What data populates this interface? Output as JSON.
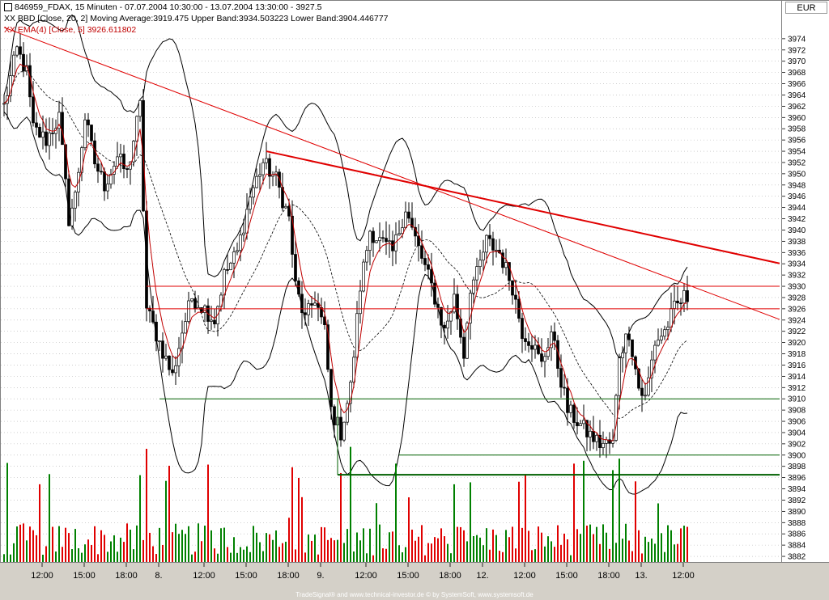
{
  "header": {
    "title_line": "846959_FDAX, 15 Minuten - 07.07.2004 10:30:00 - 13.07.2004 13:30:00 - 3927.5",
    "bollinger_line": "XX BBD [Close, 20, 2] Moving Average:3919.475 Upper Band:3934.503223 Lower Band:3904.446777",
    "ema_line": "XX EMA(4) [Close, 5] 3926.611802"
  },
  "currency": "EUR",
  "footer": "TradeSignal® and www.technical-investor.de © by SystemSoft, www.systemsoft.de",
  "colors": {
    "up": "#008000",
    "down": "#e00000",
    "ema": "#c00000",
    "trendline": "#e00000",
    "support": "#006000",
    "band": "#000000"
  },
  "chart_data": {
    "type": "candlestick",
    "ylim": [
      3881,
      3977
    ],
    "y_ticks": [
      "3974",
      "3972",
      "3970",
      "3968",
      "3966",
      "3964",
      "3962",
      "3960",
      "3958",
      "3956",
      "3954",
      "3952",
      "3950",
      "3948",
      "3946",
      "3944",
      "3942",
      "3940",
      "3938",
      "3936",
      "3934",
      "3932",
      "3930",
      "3928",
      "3926",
      "3924",
      "3922",
      "3920",
      "3918",
      "3916",
      "3914",
      "3912",
      "3910",
      "3908",
      "3906",
      "3904",
      "3902",
      "3900",
      "3898",
      "3896",
      "3894",
      "3892",
      "3890",
      "3888",
      "3886",
      "3884",
      "3882"
    ],
    "x_ticks": [
      {
        "bar": 12,
        "label": "12:00"
      },
      {
        "bar": 25,
        "label": "15:00"
      },
      {
        "bar": 38,
        "label": "18:00"
      },
      {
        "bar": 48,
        "label": "8."
      },
      {
        "bar": 62,
        "label": "12:00"
      },
      {
        "bar": 75,
        "label": "15:00"
      },
      {
        "bar": 88,
        "label": "18:00"
      },
      {
        "bar": 98,
        "label": "9."
      },
      {
        "bar": 112,
        "label": "12:00"
      },
      {
        "bar": 125,
        "label": "15:00"
      },
      {
        "bar": 138,
        "label": "18:00"
      },
      {
        "bar": 148,
        "label": "12."
      },
      {
        "bar": 161,
        "label": "12:00"
      },
      {
        "bar": 174,
        "label": "15:00"
      },
      {
        "bar": 187,
        "label": "18:00"
      },
      {
        "bar": 197,
        "label": "13."
      },
      {
        "bar": 210,
        "label": "12:00"
      }
    ],
    "num_bars": 212,
    "waypoints": [
      [
        0,
        3962
      ],
      [
        4,
        3972
      ],
      [
        7,
        3968
      ],
      [
        9,
        3958
      ],
      [
        13,
        3956
      ],
      [
        17,
        3960
      ],
      [
        20,
        3942
      ],
      [
        22,
        3946
      ],
      [
        25,
        3960
      ],
      [
        28,
        3952
      ],
      [
        31,
        3948
      ],
      [
        35,
        3953
      ],
      [
        38,
        3950
      ],
      [
        40,
        3956
      ],
      [
        42,
        3962
      ],
      [
        44,
        3926
      ],
      [
        48,
        3920
      ],
      [
        52,
        3914
      ],
      [
        55,
        3922
      ],
      [
        58,
        3928
      ],
      [
        62,
        3926
      ],
      [
        65,
        3924
      ],
      [
        68,
        3932
      ],
      [
        72,
        3936
      ],
      [
        76,
        3946
      ],
      [
        80,
        3952
      ],
      [
        84,
        3949
      ],
      [
        88,
        3942
      ],
      [
        90,
        3930
      ],
      [
        93,
        3924
      ],
      [
        96,
        3928
      ],
      [
        99,
        3922
      ],
      [
        101,
        3908
      ],
      [
        104,
        3904
      ],
      [
        107,
        3912
      ],
      [
        110,
        3930
      ],
      [
        113,
        3940
      ],
      [
        116,
        3938
      ],
      [
        120,
        3936
      ],
      [
        124,
        3944
      ],
      [
        126,
        3940
      ],
      [
        129,
        3935
      ],
      [
        132,
        3930
      ],
      [
        134,
        3926
      ],
      [
        136,
        3922
      ],
      [
        139,
        3928
      ],
      [
        142,
        3918
      ],
      [
        144,
        3930
      ],
      [
        146,
        3932
      ],
      [
        149,
        3938
      ],
      [
        153,
        3936
      ],
      [
        157,
        3930
      ],
      [
        160,
        3922
      ],
      [
        163,
        3920
      ],
      [
        166,
        3916
      ],
      [
        169,
        3922
      ],
      [
        171,
        3916
      ],
      [
        174,
        3908
      ],
      [
        177,
        3906
      ],
      [
        180,
        3904
      ],
      [
        184,
        3902
      ],
      [
        188,
        3902
      ],
      [
        190,
        3918
      ],
      [
        193,
        3922
      ],
      [
        196,
        3912
      ],
      [
        198,
        3910
      ],
      [
        201,
        3920
      ],
      [
        204,
        3922
      ],
      [
        207,
        3926
      ],
      [
        210,
        3928
      ]
    ],
    "ema": {
      "name": "XX EMA(4) [Close, 5]",
      "last": 3926.611802
    },
    "bollinger": {
      "name": "XX BBD [Close, 20, 2]",
      "moving_average": 3919.475,
      "upper_band": 3934.503223,
      "lower_band": 3904.446777
    },
    "trendlines": [
      {
        "x1": 0,
        "y1": 3976,
        "x2": 240,
        "y2": 3924,
        "width": 1
      },
      {
        "x1": 81,
        "y1": 3954,
        "x2": 240,
        "y2": 3934,
        "width": 2
      }
    ],
    "hlines": [
      {
        "y": 3930,
        "x1": 44,
        "x2": 240,
        "kind": "resistance"
      },
      {
        "y": 3926,
        "x1": 44,
        "x2": 240,
        "kind": "resistance"
      },
      {
        "y": 3910,
        "x1": 48,
        "x2": 240,
        "kind": "support"
      },
      {
        "y": 3900,
        "x1": 122,
        "x2": 240,
        "kind": "support"
      },
      {
        "y": 3896.5,
        "x1": 103,
        "x2": 240,
        "kind": "support",
        "width": 2
      }
    ],
    "volume_max_label": "tallest bar"
  }
}
